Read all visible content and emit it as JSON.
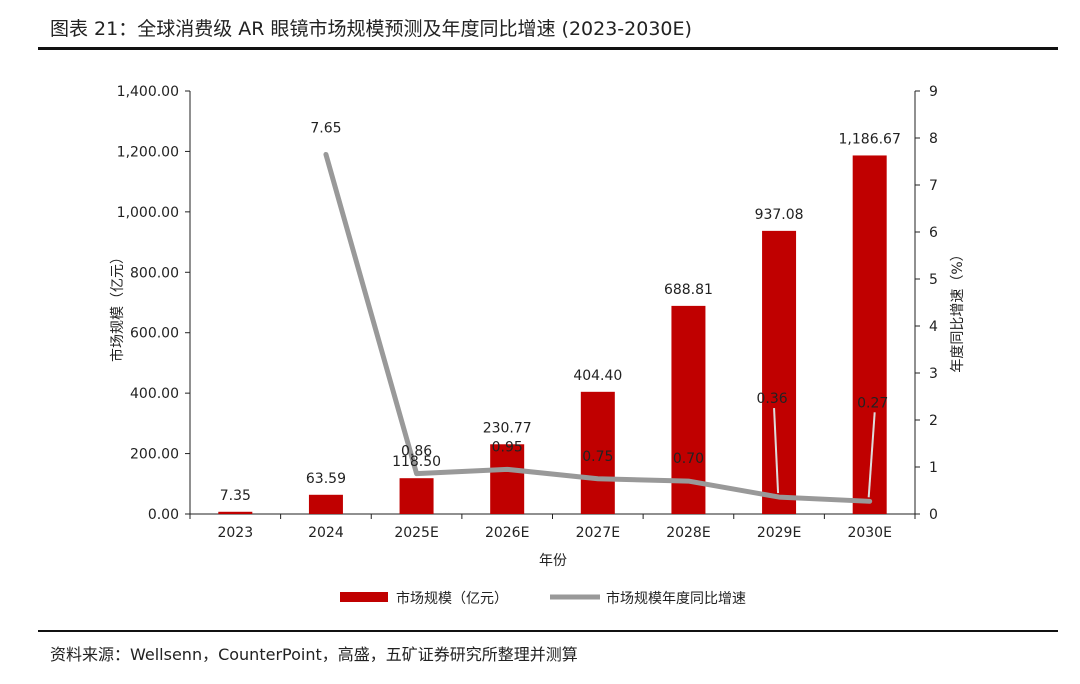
{
  "title": "图表 21：全球消费级 AR 眼镜市场规模预测及年度同比增速 (2023-2030E)",
  "source": "资料来源：Wellsenn，CounterPoint，高盛，五矿证券研究所整理并测算",
  "colors": {
    "bar": "#c00000",
    "line": "#999999",
    "axis": "#222222"
  },
  "chart_data": {
    "type": "bar+line",
    "categories": [
      "2023",
      "2024",
      "2025E",
      "2026E",
      "2027E",
      "2028E",
      "2029E",
      "2030E"
    ],
    "xlabel": "年份",
    "ylabel_left": "市场规模（亿元）",
    "ylabel_right": "年度同比增速（%）",
    "ylim_left": [
      0,
      1400
    ],
    "ylim_right": [
      0,
      9
    ],
    "left_ticks": [
      "0.00",
      "200.00",
      "400.00",
      "600.00",
      "800.00",
      "1,000.00",
      "1,200.00",
      "1,400.00"
    ],
    "right_ticks": [
      "0",
      "1",
      "2",
      "3",
      "4",
      "5",
      "6",
      "7",
      "8",
      "9"
    ],
    "series": [
      {
        "name": "市场规模（亿元）",
        "kind": "bar",
        "axis": "left",
        "values": [
          7.35,
          63.59,
          118.5,
          230.77,
          404.4,
          688.81,
          937.08,
          1186.67
        ],
        "labels": [
          "7.35",
          "63.59",
          "118.50",
          "230.77",
          "404.40",
          "688.81",
          "937.08",
          "1,186.67"
        ]
      },
      {
        "name": "市场规模年度同比增速",
        "kind": "line",
        "axis": "right",
        "values": [
          null,
          7.65,
          0.86,
          0.95,
          0.75,
          0.7,
          0.36,
          0.27
        ],
        "labels": [
          "",
          "7.65",
          "0.86",
          "0.95",
          "0.75",
          "0.70",
          "0.36",
          "0.27"
        ]
      }
    ],
    "legend": {
      "position": "bottom-center"
    }
  }
}
